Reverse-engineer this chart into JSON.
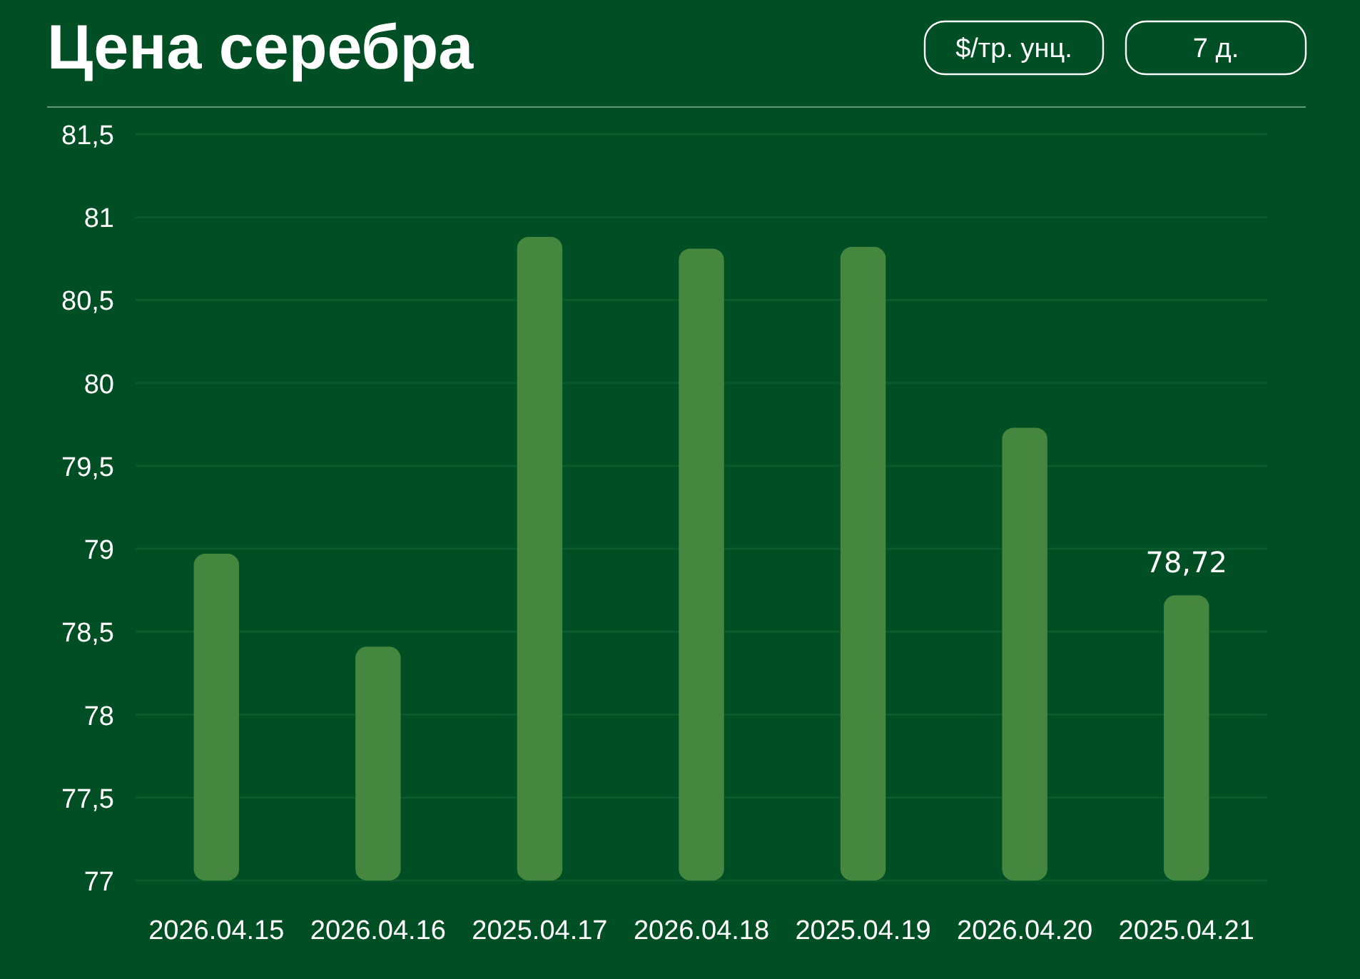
{
  "chart_data": {
    "type": "bar",
    "title": "Цена серебра",
    "annotations": [
      "$/тр. унц.",
      "7 д."
    ],
    "categories": [
      "2026.04.15",
      "2026.04.16",
      "2025.04.17",
      "2026.04.18",
      "2025.04.19",
      "2026.04.20",
      "2025.04.21"
    ],
    "values": [
      78.97,
      78.41,
      80.88,
      80.81,
      80.82,
      79.73,
      78.72
    ],
    "value_labels": [
      null,
      null,
      null,
      null,
      null,
      null,
      "78,72"
    ],
    "color": "#45873f",
    "ylim": [
      77,
      81.5
    ],
    "yticks": [
      {
        "value": 77,
        "label": "77"
      },
      {
        "value": 77.5,
        "label": "77,5"
      },
      {
        "value": 78,
        "label": "78"
      },
      {
        "value": 78.5,
        "label": "78,5"
      },
      {
        "value": 79,
        "label": "79"
      },
      {
        "value": 79.5,
        "label": "79,5"
      },
      {
        "value": 80,
        "label": "80"
      },
      {
        "value": 80.5,
        "label": "80,5"
      },
      {
        "value": 81,
        "label": "81"
      },
      {
        "value": 81.5,
        "label": "81,5"
      }
    ],
    "grid": "y"
  }
}
